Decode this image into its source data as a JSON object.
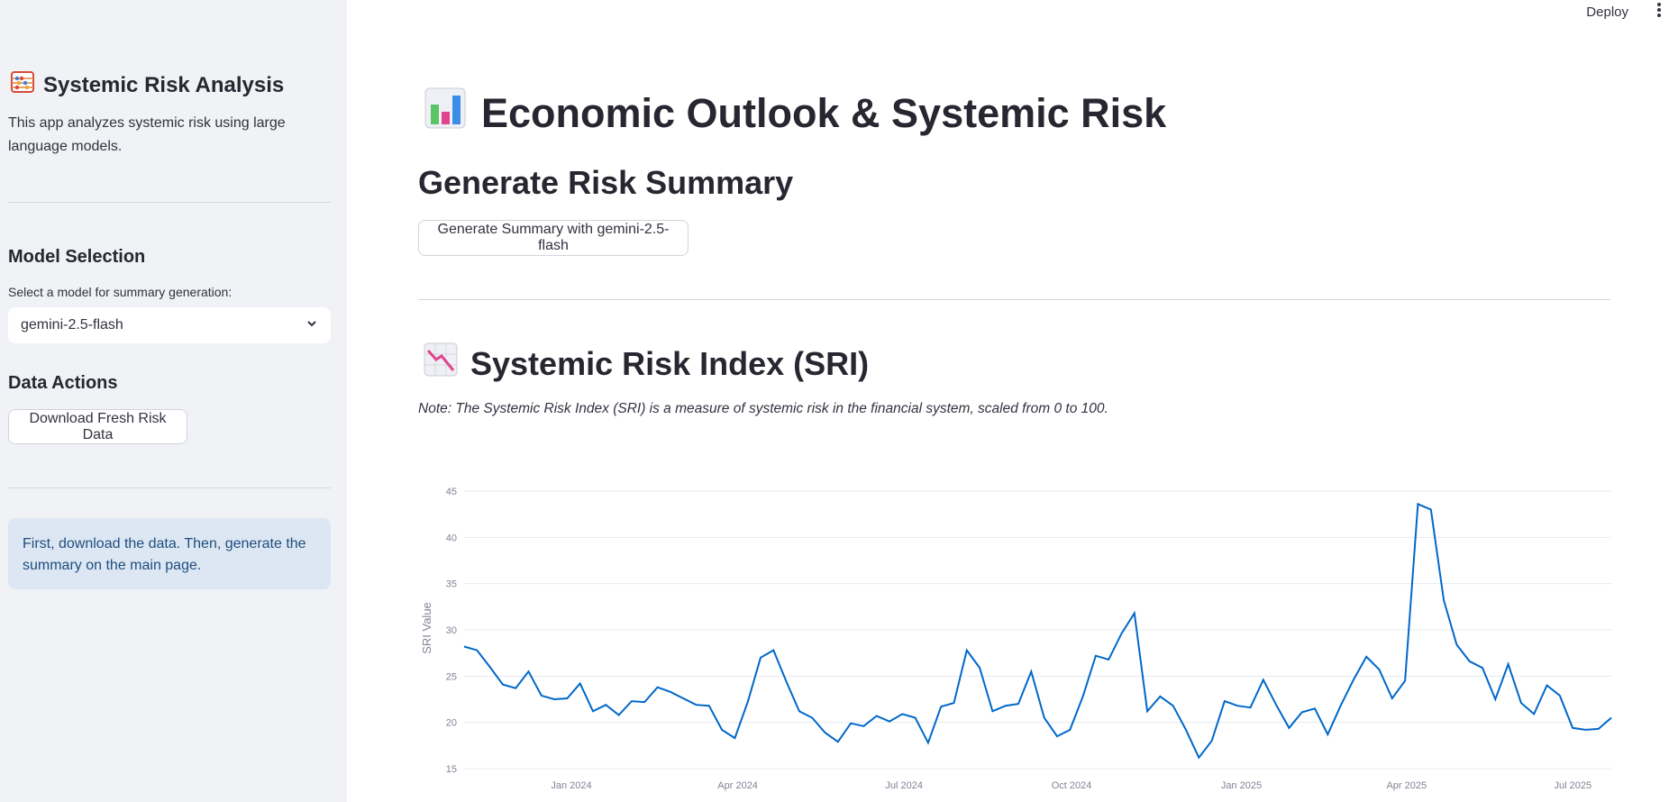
{
  "topbar": {
    "deploy_label": "Deploy",
    "menu_icon": "more-vertical-icon"
  },
  "sidebar": {
    "title": "Systemic Risk Analysis",
    "title_icon": "abacus-icon",
    "description": "This app analyzes systemic risk using large language models.",
    "model_heading": "Model Selection",
    "model_label": "Select a model for summary generation:",
    "model_value": "gemini-2.5-flash",
    "data_heading": "Data Actions",
    "download_button": "Download Fresh Risk Data",
    "info_text": "First, download the data. Then, generate the summary on the main page."
  },
  "main": {
    "title": "Economic Outlook & Systemic Risk",
    "title_icon": "bar-chart-icon",
    "summary_heading": "Generate Risk Summary",
    "generate_button": "Generate Summary with gemini-2.5-flash",
    "sri_heading": "Systemic Risk Index (SRI)",
    "sri_icon": "chart-decreasing-icon",
    "note": "Note: The Systemic Risk Index (SRI) is a measure of systemic risk in the financial system, scaled from 0 to 100."
  },
  "colors": {
    "line": "#0068c9",
    "sidebar_bg": "#f0f2f6",
    "info_bg": "#dce7f3",
    "info_text": "#1f4d7e"
  },
  "chart_data": {
    "type": "line",
    "ylabel": "SRI Value",
    "xlabel": "",
    "ylim": [
      15,
      45
    ],
    "grid": true,
    "y_ticks": [
      "15",
      "20",
      "25",
      "30",
      "35",
      "40",
      "45"
    ],
    "x_ticks": [
      "Jan 2024",
      "Apr 2024",
      "Jul 2024",
      "Oct 2024",
      "Jan 2025",
      "Apr 2025",
      "Jul 2025"
    ],
    "series": [
      {
        "values": [
          28.2,
          27.8,
          26.0,
          24.1,
          23.7,
          25.5,
          22.9,
          22.5,
          22.6,
          24.2,
          21.2,
          21.9,
          20.8,
          22.3,
          22.2,
          23.8,
          23.3,
          22.6,
          21.9,
          21.8,
          19.2,
          18.3,
          22.2,
          27.0,
          27.8,
          24.4,
          21.2,
          20.5,
          18.9,
          17.9,
          19.9,
          19.6,
          20.7,
          20.1,
          20.9,
          20.5,
          17.8,
          21.7,
          22.1,
          27.8,
          25.9,
          21.2,
          21.8,
          22.0,
          25.5,
          20.5,
          18.5,
          19.2,
          22.8,
          27.2,
          26.8,
          29.6,
          31.8,
          21.2,
          22.8,
          21.8,
          19.2,
          16.2,
          18.0,
          22.3,
          21.8,
          21.6,
          24.6,
          21.9,
          19.4,
          21.1,
          21.5,
          18.7,
          21.8,
          24.6,
          27.1,
          25.7,
          22.6,
          24.5,
          43.6,
          43.0,
          33.2,
          28.4,
          26.6,
          25.9,
          22.5,
          26.3,
          22.1,
          20.9,
          24.0,
          22.9,
          19.4,
          19.2,
          19.3,
          20.5
        ]
      }
    ]
  }
}
